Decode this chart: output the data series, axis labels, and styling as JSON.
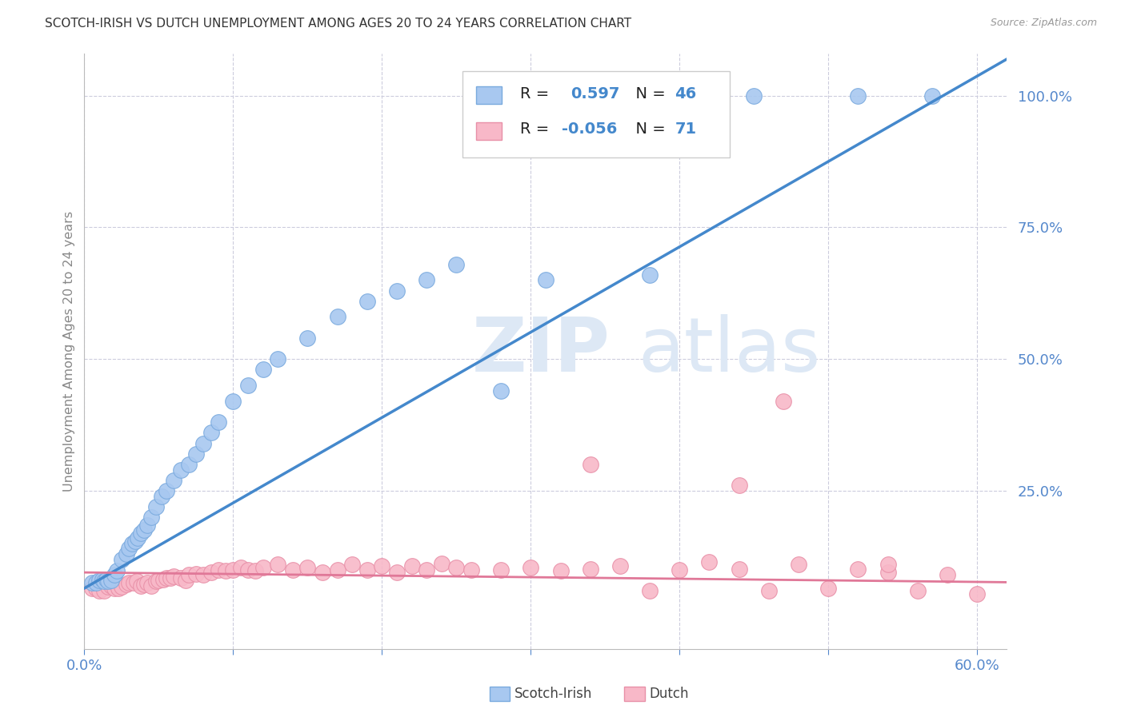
{
  "title": "SCOTCH-IRISH VS DUTCH UNEMPLOYMENT AMONG AGES 20 TO 24 YEARS CORRELATION CHART",
  "source": "Source: ZipAtlas.com",
  "ylabel": "Unemployment Among Ages 20 to 24 years",
  "xlim": [
    0.0,
    0.62
  ],
  "ylim": [
    -0.05,
    1.08
  ],
  "scotch_irish_fill": "#a8c8f0",
  "scotch_irish_edge": "#7aaade",
  "dutch_fill": "#f8b8c8",
  "dutch_edge": "#e890a8",
  "blue_line_color": "#4488cc",
  "pink_line_color": "#e07898",
  "watermark_color": "#dde8f5",
  "legend_R_scotch": "0.597",
  "legend_N_scotch": "46",
  "legend_R_dutch": "-0.056",
  "legend_N_dutch": "71",
  "background_color": "#ffffff",
  "title_color": "#333333",
  "axis_tick_color": "#5588cc",
  "grid_color": "#ccccdd",
  "blue_line_m": 1.62,
  "blue_line_b": 0.065,
  "pink_line_m": -0.03,
  "pink_line_b": 0.095,
  "scotch_irish_x": [
    0.005,
    0.008,
    0.01,
    0.012,
    0.013,
    0.015,
    0.016,
    0.018,
    0.02,
    0.022,
    0.025,
    0.028,
    0.03,
    0.032,
    0.034,
    0.036,
    0.038,
    0.04,
    0.042,
    0.045,
    0.048,
    0.052,
    0.055,
    0.06,
    0.065,
    0.07,
    0.075,
    0.08,
    0.085,
    0.09,
    0.1,
    0.11,
    0.12,
    0.13,
    0.15,
    0.17,
    0.19,
    0.21,
    0.23,
    0.25,
    0.28,
    0.31,
    0.38,
    0.45,
    0.52,
    0.57
  ],
  "scotch_irish_y": [
    0.075,
    0.075,
    0.08,
    0.082,
    0.078,
    0.082,
    0.078,
    0.08,
    0.09,
    0.098,
    0.12,
    0.13,
    0.14,
    0.15,
    0.155,
    0.16,
    0.17,
    0.175,
    0.185,
    0.2,
    0.22,
    0.24,
    0.25,
    0.27,
    0.29,
    0.3,
    0.32,
    0.34,
    0.36,
    0.38,
    0.42,
    0.45,
    0.48,
    0.5,
    0.54,
    0.58,
    0.61,
    0.63,
    0.65,
    0.68,
    0.44,
    0.65,
    0.66,
    1.0,
    1.0,
    1.0
  ],
  "dutch_x": [
    0.005,
    0.008,
    0.01,
    0.013,
    0.016,
    0.018,
    0.02,
    0.023,
    0.025,
    0.028,
    0.03,
    0.033,
    0.035,
    0.038,
    0.04,
    0.042,
    0.045,
    0.048,
    0.05,
    0.053,
    0.055,
    0.058,
    0.06,
    0.065,
    0.068,
    0.07,
    0.075,
    0.08,
    0.085,
    0.09,
    0.095,
    0.1,
    0.105,
    0.11,
    0.115,
    0.12,
    0.13,
    0.14,
    0.15,
    0.16,
    0.17,
    0.18,
    0.19,
    0.2,
    0.21,
    0.22,
    0.23,
    0.24,
    0.25,
    0.26,
    0.28,
    0.3,
    0.32,
    0.34,
    0.36,
    0.38,
    0.4,
    0.42,
    0.44,
    0.46,
    0.48,
    0.5,
    0.52,
    0.54,
    0.56,
    0.58,
    0.6,
    0.34,
    0.44,
    0.47,
    0.54
  ],
  "dutch_y": [
    0.065,
    0.065,
    0.06,
    0.06,
    0.068,
    0.07,
    0.065,
    0.065,
    0.068,
    0.072,
    0.075,
    0.075,
    0.078,
    0.07,
    0.072,
    0.075,
    0.07,
    0.078,
    0.08,
    0.082,
    0.085,
    0.085,
    0.088,
    0.085,
    0.08,
    0.09,
    0.092,
    0.09,
    0.095,
    0.1,
    0.098,
    0.1,
    0.105,
    0.1,
    0.098,
    0.105,
    0.11,
    0.1,
    0.105,
    0.095,
    0.1,
    0.11,
    0.1,
    0.108,
    0.095,
    0.108,
    0.1,
    0.112,
    0.105,
    0.1,
    0.1,
    0.105,
    0.098,
    0.102,
    0.108,
    0.06,
    0.1,
    0.115,
    0.102,
    0.06,
    0.11,
    0.065,
    0.102,
    0.095,
    0.06,
    0.09,
    0.055,
    0.3,
    0.26,
    0.42,
    0.11
  ]
}
